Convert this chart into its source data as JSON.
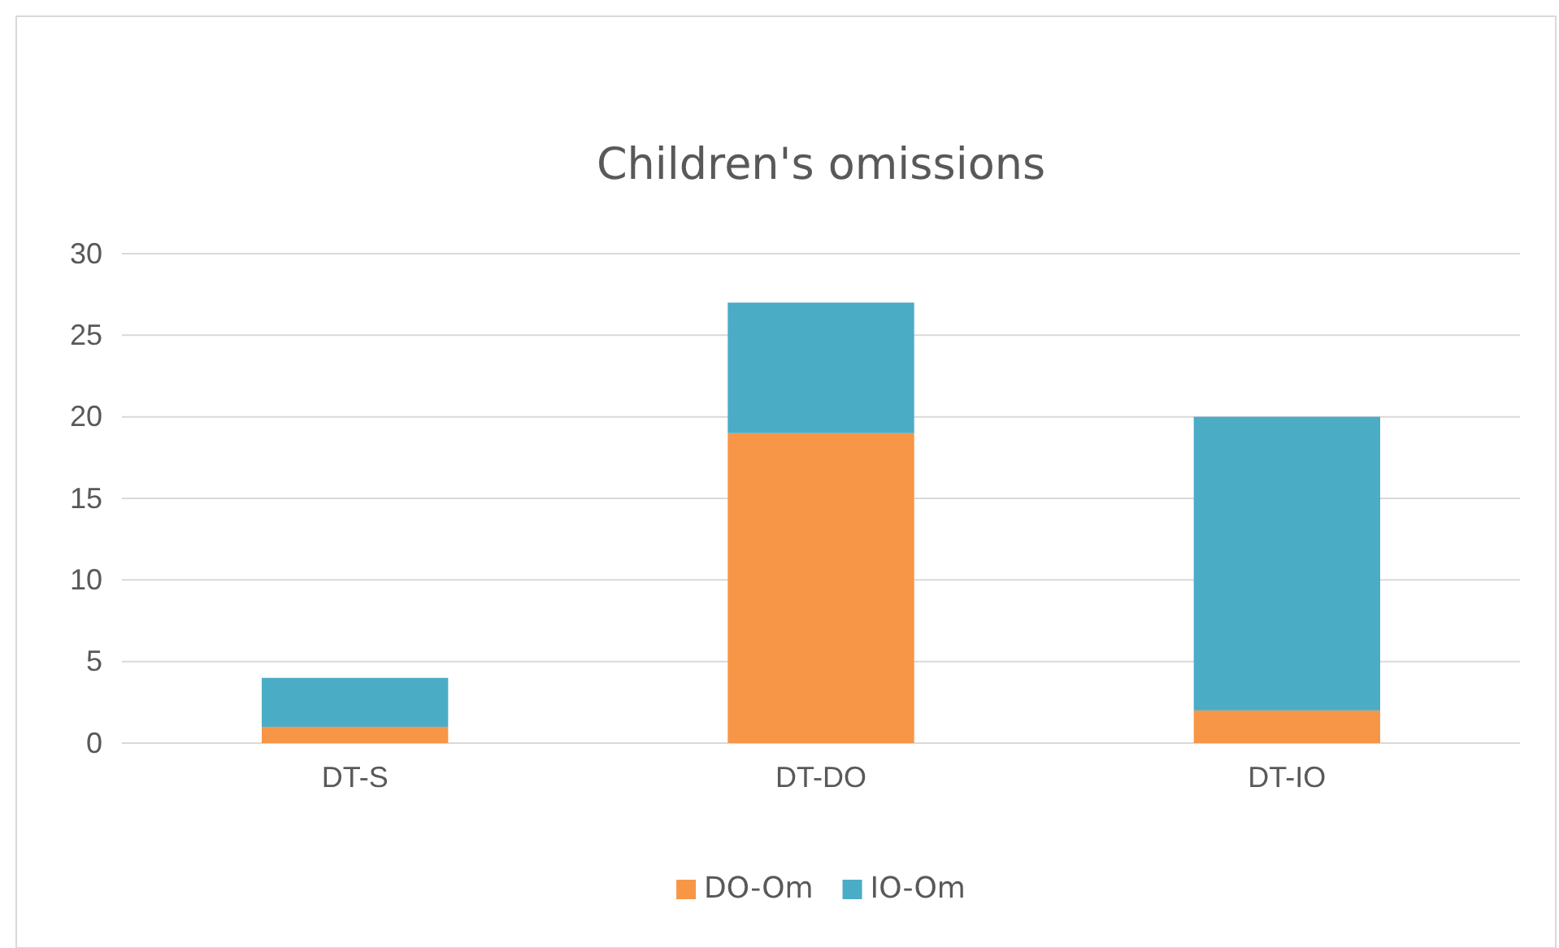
{
  "chart_data": {
    "type": "bar",
    "title": "Children's omissions",
    "categories": [
      "DT-S",
      "DT-DO",
      "DT-IO"
    ],
    "stacked": true,
    "series": [
      {
        "name": "DO-Om",
        "color": "#f79646",
        "values": [
          1,
          19,
          2
        ]
      },
      {
        "name": "IO-Om",
        "color": "#4bacc6",
        "values": [
          3,
          8,
          18
        ]
      }
    ],
    "ylim": [
      0,
      30
    ],
    "yticks": [
      0,
      5,
      10,
      15,
      20,
      25,
      30
    ],
    "grid": "y",
    "legend": "bottom"
  }
}
